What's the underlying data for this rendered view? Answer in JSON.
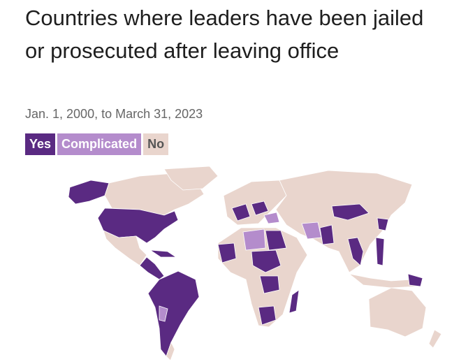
{
  "header": {
    "title": "Countries where leaders have been jailed or prosecuted after leaving office",
    "subtitle": "Jan. 1, 2000, to March 31, 2023"
  },
  "legend": [
    {
      "label": "Yes",
      "color": "#5a2a82"
    },
    {
      "label": "Complicated",
      "color": "#b48ccc"
    },
    {
      "label": "No",
      "color": "#e9d5cd"
    }
  ]
}
